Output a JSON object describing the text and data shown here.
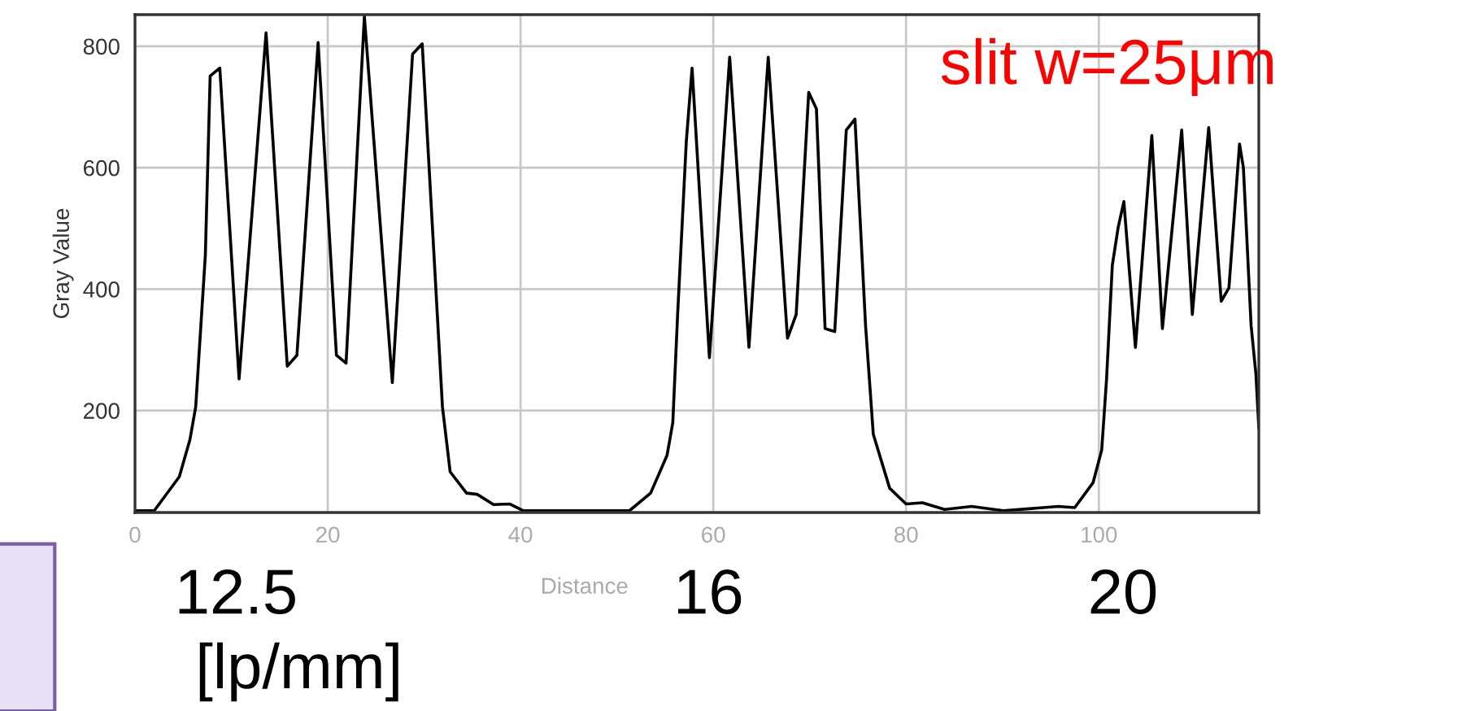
{
  "chart_data": {
    "type": "line",
    "xlabel": "Distance",
    "ylabel": "Gray Value",
    "x": [
      0,
      2,
      4.6,
      5.7,
      6.3,
      7.3,
      7.8,
      8.8,
      10.8,
      13.6,
      15.8,
      16.8,
      19.0,
      20.9,
      21.9,
      23.8,
      26.7,
      28.8,
      29.8,
      31.9,
      32.7,
      34.4,
      35.5,
      37.2,
      38.9,
      40.3,
      51.3,
      53.5,
      55.2,
      55.8,
      56.3,
      57.2,
      57.8,
      59.6,
      61.7,
      63.7,
      65.7,
      67.7,
      68.6,
      69.9,
      70.7,
      71.6,
      72.6,
      73.8,
      74.7,
      75.8,
      76.6,
      78.3,
      80.0,
      81.7,
      84,
      86.8,
      90.1,
      95.8,
      97.5,
      99.4,
      100.3,
      100.8,
      101.4,
      102,
      102.6,
      103.8,
      105.5,
      106.6,
      108.6,
      109.7,
      111.4,
      112.7,
      113.5,
      114.6,
      115.0,
      115.8,
      116.3,
      116.6
    ],
    "series": [
      {
        "color": "#000000",
        "values": [
          35,
          35,
          91,
          152,
          206,
          456,
          751,
          764,
          252,
          822,
          273,
          291,
          806,
          291,
          278,
          849,
          246,
          787,
          804,
          206,
          99,
          64,
          62,
          45,
          46,
          35,
          35,
          64,
          126,
          180,
          358,
          643,
          764,
          287,
          782,
          304,
          782,
          319,
          358,
          724,
          697,
          335,
          330,
          662,
          680,
          340,
          161,
          72,
          46,
          48,
          37,
          42,
          35,
          42,
          40,
          81,
          135,
          251,
          439,
          501,
          544,
          304,
          653,
          335,
          662,
          358,
          666,
          380,
          402,
          639,
          600,
          340,
          260,
          171
        ]
      }
    ],
    "xlim": [
      0,
      116.6
    ],
    "ylim": [
      32,
      852
    ],
    "xticks": [
      0,
      20,
      40,
      60,
      80,
      100
    ],
    "yticks": [
      200,
      400,
      600,
      800
    ],
    "grid": true,
    "marker": "none",
    "line_style": "solid",
    "annotations": [
      "slit w=25μm",
      "12.5",
      "16",
      "20",
      "[lp/mm]"
    ]
  }
}
